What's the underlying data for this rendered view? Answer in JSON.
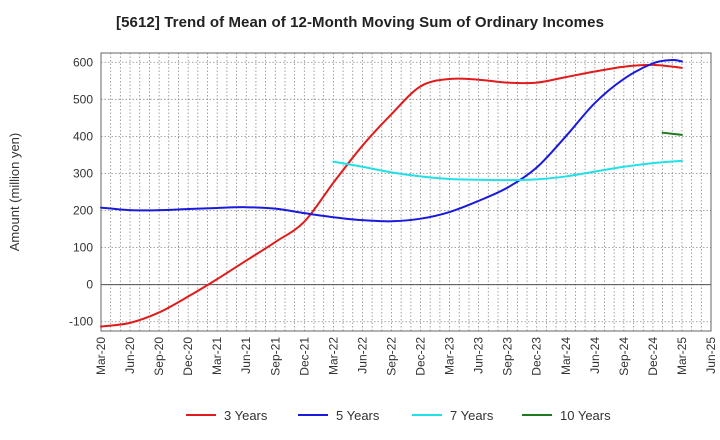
{
  "chart_data": {
    "type": "line",
    "title": "[5612]  Trend of Mean of 12-Month Moving Sum of Ordinary Incomes",
    "xlabel": "",
    "ylabel": "Amount (million yen)",
    "ylim": [
      -125,
      625
    ],
    "yticks": [
      -100,
      0,
      100,
      200,
      300,
      400,
      500,
      600
    ],
    "xticks": [
      "Mar-20",
      "Jun-20",
      "Sep-20",
      "Dec-20",
      "Mar-21",
      "Jun-21",
      "Sep-21",
      "Dec-21",
      "Mar-22",
      "Jun-22",
      "Sep-22",
      "Dec-22",
      "Mar-23",
      "Jun-23",
      "Sep-23",
      "Dec-23",
      "Mar-24",
      "Jun-24",
      "Sep-24",
      "Dec-24",
      "Mar-25",
      "Jun-25"
    ],
    "grid": true,
    "legend_position": "bottom",
    "series": [
      {
        "name": "3 Years",
        "color": "#e01b1b",
        "x": [
          "Mar-20",
          "Jun-20",
          "Sep-20",
          "Dec-20",
          "Mar-21",
          "Jun-21",
          "Sep-21",
          "Dec-21",
          "Mar-22",
          "Jun-22",
          "Sep-22",
          "Dec-22",
          "Mar-23",
          "Jun-23",
          "Sep-23",
          "Dec-23",
          "Mar-24",
          "Jun-24",
          "Sep-24",
          "Dec-24",
          "Mar-25"
        ],
        "values": [
          -113,
          -103,
          -75,
          -32,
          15,
          65,
          115,
          170,
          275,
          375,
          460,
          535,
          555,
          553,
          545,
          545,
          560,
          575,
          588,
          593,
          585
        ]
      },
      {
        "name": "5 Years",
        "color": "#1a1adc",
        "x": [
          "Mar-20",
          "Jun-20",
          "Sep-20",
          "Dec-20",
          "Mar-21",
          "Jun-21",
          "Sep-21",
          "Dec-21",
          "Mar-22",
          "Jun-22",
          "Sep-22",
          "Dec-22",
          "Mar-23",
          "Jun-23",
          "Sep-23",
          "Dec-23",
          "Mar-24",
          "Jun-24",
          "Sep-24",
          "Dec-24",
          "Feb-25",
          "Mar-25"
        ],
        "values": [
          208,
          201,
          201,
          204,
          207,
          209,
          205,
          193,
          182,
          174,
          171,
          178,
          196,
          226,
          262,
          316,
          400,
          490,
          555,
          597,
          606,
          602
        ]
      },
      {
        "name": "7 Years",
        "color": "#22e0e8",
        "x": [
          "Mar-22",
          "Jun-22",
          "Sep-22",
          "Dec-22",
          "Mar-23",
          "Jun-23",
          "Sep-23",
          "Dec-23",
          "Mar-24",
          "Jun-24",
          "Sep-24",
          "Dec-24",
          "Mar-25"
        ],
        "values": [
          332,
          318,
          303,
          292,
          285,
          283,
          282,
          284,
          292,
          305,
          318,
          328,
          334
        ]
      },
      {
        "name": "10 Years",
        "color": "#1f7a1f",
        "x": [
          "Jan-25",
          "Mar-25"
        ],
        "values": [
          410,
          404
        ]
      }
    ]
  }
}
